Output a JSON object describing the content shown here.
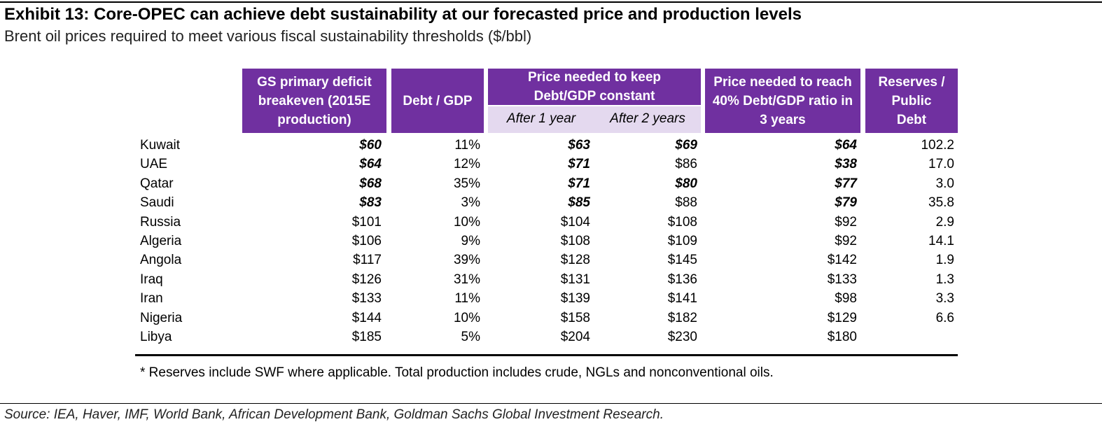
{
  "header": {
    "title": "Exhibit 13: Core-OPEC can achieve debt sustainability at our forecasted price and production levels",
    "subtitle": "Brent oil prices required to meet various fiscal sustainability thresholds ($/bbl)"
  },
  "table": {
    "columns": [
      "GS primary deficit breakeven (2015E production)",
      "Debt / GDP",
      "Price needed to keep Debt/GDP constant",
      "Price needed to reach 40% Debt/GDP ratio in 3 years",
      "Reserves / Public Debt"
    ],
    "subcolumns": [
      "After 1 year",
      "After 2 years"
    ],
    "rows": [
      {
        "label": "Kuwait",
        "cells": [
          "$60",
          "11%",
          "$63",
          "$69",
          "$64",
          "102.2"
        ],
        "emphasized": [
          true,
          false,
          true,
          true,
          true,
          false
        ]
      },
      {
        "label": "UAE",
        "cells": [
          "$64",
          "12%",
          "$71",
          "$86",
          "$38",
          "17.0"
        ],
        "emphasized": [
          true,
          false,
          true,
          false,
          true,
          false
        ]
      },
      {
        "label": "Qatar",
        "cells": [
          "$68",
          "35%",
          "$71",
          "$80",
          "$77",
          "3.0"
        ],
        "emphasized": [
          true,
          false,
          true,
          true,
          true,
          false
        ]
      },
      {
        "label": "Saudi",
        "cells": [
          "$83",
          "3%",
          "$85",
          "$88",
          "$79",
          "35.8"
        ],
        "emphasized": [
          true,
          false,
          true,
          false,
          true,
          false
        ]
      },
      {
        "label": "Russia",
        "cells": [
          "$101",
          "10%",
          "$104",
          "$108",
          "$92",
          "2.9"
        ],
        "emphasized": [
          false,
          false,
          false,
          false,
          false,
          false
        ]
      },
      {
        "label": "Algeria",
        "cells": [
          "$106",
          "9%",
          "$108",
          "$109",
          "$92",
          "14.1"
        ],
        "emphasized": [
          false,
          false,
          false,
          false,
          false,
          false
        ]
      },
      {
        "label": "Angola",
        "cells": [
          "$117",
          "39%",
          "$128",
          "$145",
          "$142",
          "1.9"
        ],
        "emphasized": [
          false,
          false,
          false,
          false,
          false,
          false
        ]
      },
      {
        "label": "Iraq",
        "cells": [
          "$126",
          "31%",
          "$131",
          "$136",
          "$133",
          "1.3"
        ],
        "emphasized": [
          false,
          false,
          false,
          false,
          false,
          false
        ]
      },
      {
        "label": "Iran",
        "cells": [
          "$133",
          "11%",
          "$139",
          "$141",
          "$98",
          "3.3"
        ],
        "emphasized": [
          false,
          false,
          false,
          false,
          false,
          false
        ]
      },
      {
        "label": "Nigeria",
        "cells": [
          "$144",
          "10%",
          "$158",
          "$182",
          "$129",
          "6.6"
        ],
        "emphasized": [
          false,
          false,
          false,
          false,
          false,
          false
        ]
      },
      {
        "label": "Libya",
        "cells": [
          "$185",
          "5%",
          "$204",
          "$230",
          "$180",
          null
        ],
        "emphasized": [
          false,
          false,
          false,
          false,
          false,
          false
        ]
      }
    ]
  },
  "footnote": "* Reserves include SWF where applicable. Total production includes crude, NGLs and nonconventional oils.",
  "source": "Source: IEA, Haver, IMF, World Bank, African Development Bank, Goldman Sachs Global Investment Research."
}
